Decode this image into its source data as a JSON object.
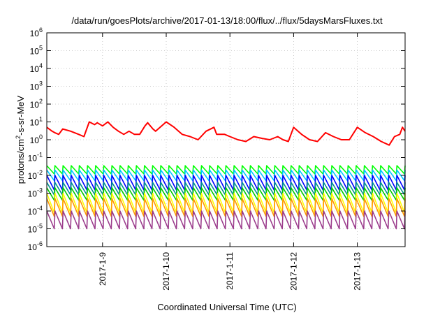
{
  "chart_data": {
    "type": "line",
    "title": "/data/run/goesPlots/archive/2017-01-13/18:00/flux/../flux/5daysMarsFluxes.txt",
    "xlabel": "Coordinated Universal Time (UTC)",
    "ylabel": {
      "prefix": "protons/cm",
      "sup": "2",
      "suffix": "-s-sr-MeV"
    },
    "scale": "log",
    "grid": true,
    "x_range": [
      "2017-01-08T03:00",
      "2017-01-13T18:00"
    ],
    "ylim_exponents": [
      -6,
      6
    ],
    "y_ticks": [
      {
        "base": "10",
        "exp": "-6",
        "exponent": -6
      },
      {
        "base": "10",
        "exp": "-5",
        "exponent": -5
      },
      {
        "base": "10",
        "exp": "-4",
        "exponent": -4
      },
      {
        "base": "10",
        "exp": "-3",
        "exponent": -3
      },
      {
        "base": "10",
        "exp": "-2",
        "exponent": -2
      },
      {
        "base": "10",
        "exp": "-1",
        "exponent": -1
      },
      {
        "base": "10",
        "exp": "0",
        "exponent": 0
      },
      {
        "base": "10",
        "exp": "1",
        "exponent": 1
      },
      {
        "base": "10",
        "exp": "2",
        "exponent": 2
      },
      {
        "base": "10",
        "exp": "3",
        "exponent": 3
      },
      {
        "base": "10",
        "exp": "4",
        "exponent": 4
      },
      {
        "base": "10",
        "exp": "5",
        "exponent": 5
      },
      {
        "base": "10",
        "exp": "6",
        "exponent": 6
      }
    ],
    "x_ticks": [
      {
        "label": "2017-1-9",
        "value": "2017-01-09T00:00"
      },
      {
        "label": "2017-1-10",
        "value": "2017-01-10T00:00"
      },
      {
        "label": "2017-1-11",
        "value": "2017-01-11T00:00"
      },
      {
        "label": "2017-1-12",
        "value": "2017-01-12T00:00"
      },
      {
        "label": "2017-1-13",
        "value": "2017-01-13T00:00"
      }
    ],
    "series": [
      {
        "color": "#ff0000",
        "x": [
          "2017-01-08T03:00",
          "2017-01-08T05:00",
          "2017-01-08T06:00",
          "2017-01-08T07:30",
          "2017-01-08T09:00",
          "2017-01-08T12:00",
          "2017-01-08T15:00",
          "2017-01-08T17:00",
          "2017-01-08T19:00",
          "2017-01-08T21:00",
          "2017-01-08T22:00",
          "2017-01-09T00:00",
          "2017-01-09T02:00",
          "2017-01-09T04:00",
          "2017-01-09T06:00",
          "2017-01-09T08:00",
          "2017-01-09T10:00",
          "2017-01-09T12:00",
          "2017-01-09T14:00",
          "2017-01-09T16:00",
          "2017-01-09T17:00",
          "2017-01-09T19:00",
          "2017-01-09T20:00",
          "2017-01-10T00:00",
          "2017-01-10T03:00",
          "2017-01-10T06:00",
          "2017-01-10T09:00",
          "2017-01-10T12:00",
          "2017-01-10T15:00",
          "2017-01-10T18:00",
          "2017-01-10T19:00",
          "2017-01-10T22:00",
          "2017-01-11T00:00",
          "2017-01-11T03:00",
          "2017-01-11T06:00",
          "2017-01-11T09:00",
          "2017-01-11T12:00",
          "2017-01-11T15:00",
          "2017-01-11T18:00",
          "2017-01-11T20:00",
          "2017-01-11T22:00",
          "2017-01-12T00:00",
          "2017-01-12T03:00",
          "2017-01-12T06:00",
          "2017-01-12T09:00",
          "2017-01-12T12:00",
          "2017-01-12T15:00",
          "2017-01-12T18:00",
          "2017-01-12T21:00",
          "2017-01-13T00:00",
          "2017-01-13T03:00",
          "2017-01-13T06:00",
          "2017-01-13T09:00",
          "2017-01-13T12:00",
          "2017-01-13T14:00",
          "2017-01-13T16:00",
          "2017-01-13T17:00",
          "2017-01-13T18:00"
        ],
        "y": [
          5,
          3,
          2.5,
          2,
          4,
          3,
          2,
          1.5,
          10,
          7,
          9,
          6,
          10,
          5,
          3,
          2,
          3,
          2,
          2,
          6,
          9,
          4,
          3,
          10,
          5,
          2,
          1.5,
          1,
          3,
          5,
          2,
          2,
          1.5,
          1,
          0.8,
          1.5,
          1.2,
          1,
          1.5,
          1,
          0.8,
          5,
          2,
          1,
          0.8,
          2.5,
          1.5,
          1,
          1,
          5,
          2.5,
          1.5,
          0.8,
          0.5,
          1.5,
          2,
          5,
          3
        ]
      },
      {
        "color": "#00ff00",
        "x_start": "2017-01-08T03:00",
        "x_end": "2017-01-13T18:00",
        "cycles": 44,
        "y_high": 0.035,
        "y_low": 0.012
      },
      {
        "color": "#00c8ff",
        "x_start": "2017-01-08T03:00",
        "x_end": "2017-01-13T18:00",
        "cycles": 44,
        "y_high": 0.02,
        "y_low": 0.005
      },
      {
        "color": "#0000ff",
        "x_start": "2017-01-08T03:00",
        "x_end": "2017-01-13T18:00",
        "cycles": 44,
        "y_high": 0.01,
        "y_low": 0.0015
      },
      {
        "color": "#009090",
        "x_start": "2017-01-08T03:00",
        "x_end": "2017-01-13T18:00",
        "cycles": 44,
        "y_high": 0.004,
        "y_low": 0.0008
      },
      {
        "color": "#00cc00",
        "x_start": "2017-01-08T03:00",
        "x_end": "2017-01-13T18:00",
        "cycles": 44,
        "y_high": 0.002,
        "y_low": 0.0004
      },
      {
        "color": "#ffff00",
        "x_start": "2017-01-08T03:00",
        "x_end": "2017-01-13T18:00",
        "cycles": 44,
        "y_high": 0.001,
        "y_low": 8e-05
      },
      {
        "color": "#ff9900",
        "x_start": "2017-01-08T03:00",
        "x_end": "2017-01-13T18:00",
        "cycles": 44,
        "y_high": 0.0005,
        "y_low": 5e-05
      },
      {
        "color": "#9b3c8c",
        "x_start": "2017-01-08T03:00",
        "x_end": "2017-01-13T18:00",
        "cycles": 44,
        "y_high": 0.0001,
        "y_low": 1e-05
      }
    ]
  }
}
